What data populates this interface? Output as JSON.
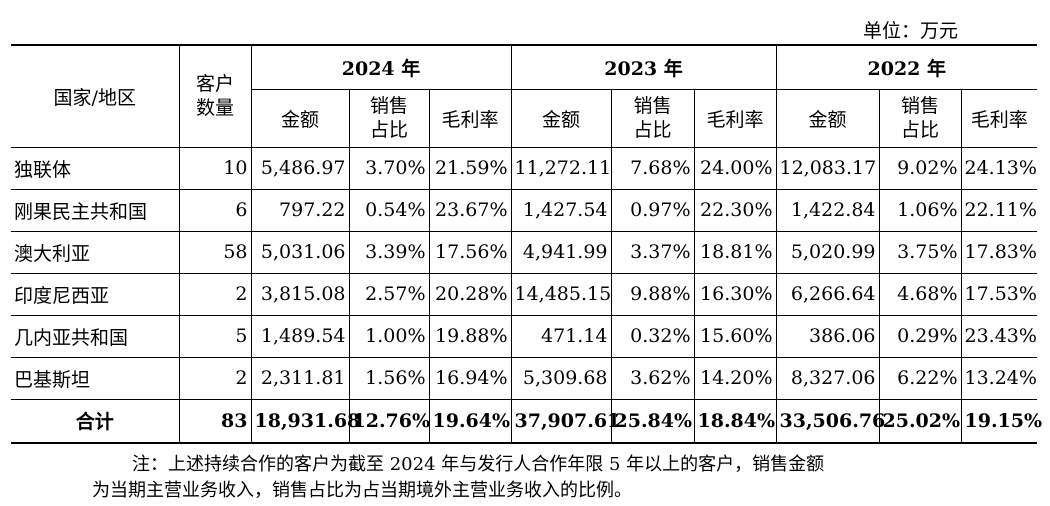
{
  "unit_label": "单位：万元",
  "header": {
    "region": "国家/地区",
    "customers_line1": "客户",
    "customers_line2": "数量",
    "years": [
      "2024 年",
      "2023 年",
      "2022 年"
    ],
    "amount": "金额",
    "share_line1": "销售",
    "share_line2": "占比",
    "margin": "毛利率"
  },
  "rows": [
    {
      "region": "独联体",
      "customers": "10",
      "y2024": [
        "5,486.97",
        "3.70%",
        "21.59%"
      ],
      "y2023": [
        "11,272.11",
        "7.68%",
        "24.00%"
      ],
      "y2022": [
        "12,083.17",
        "9.02%",
        "24.13%"
      ]
    },
    {
      "region": "刚果民主共和国",
      "customers": "6",
      "y2024": [
        "797.22",
        "0.54%",
        "23.67%"
      ],
      "y2023": [
        "1,427.54",
        "0.97%",
        "22.30%"
      ],
      "y2022": [
        "1,422.84",
        "1.06%",
        "22.11%"
      ]
    },
    {
      "region": "澳大利亚",
      "customers": "58",
      "y2024": [
        "5,031.06",
        "3.39%",
        "17.56%"
      ],
      "y2023": [
        "4,941.99",
        "3.37%",
        "18.81%"
      ],
      "y2022": [
        "5,020.99",
        "3.75%",
        "17.83%"
      ]
    },
    {
      "region": "印度尼西亚",
      "customers": "2",
      "y2024": [
        "3,815.08",
        "2.57%",
        "20.28%"
      ],
      "y2023": [
        "14,485.15",
        "9.88%",
        "16.30%"
      ],
      "y2022": [
        "6,266.64",
        "4.68%",
        "17.53%"
      ]
    },
    {
      "region": "几内亚共和国",
      "customers": "5",
      "y2024": [
        "1,489.54",
        "1.00%",
        "19.88%"
      ],
      "y2023": [
        "471.14",
        "0.32%",
        "15.60%"
      ],
      "y2022": [
        "386.06",
        "0.29%",
        "23.43%"
      ]
    },
    {
      "region": "巴基斯坦",
      "customers": "2",
      "y2024": [
        "2,311.81",
        "1.56%",
        "16.94%"
      ],
      "y2023": [
        "5,309.68",
        "3.62%",
        "14.20%"
      ],
      "y2022": [
        "8,327.06",
        "6.22%",
        "13.24%"
      ]
    }
  ],
  "total": {
    "region": "合计",
    "customers": "83",
    "y2024": [
      "18,931.68",
      "12.76%",
      "19.64%"
    ],
    "y2023": [
      "37,907.61",
      "25.84%",
      "18.84%"
    ],
    "y2022": [
      "33,506.76",
      "25.02%",
      "19.15%"
    ]
  },
  "note": {
    "line1": "注：上述持续合作的客户为截至 2024 年与发行人合作年限 5 年以上的客户，销售金额",
    "line2": "为当期主营业务收入，销售占比为占当期境外主营业务收入的比例。"
  }
}
